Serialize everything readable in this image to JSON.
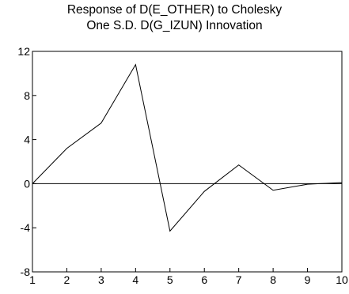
{
  "chart_data": {
    "type": "line",
    "title": "Response of D(E_OTHER) to Cholesky",
    "subtitle": "One S.D. D(G_IZUN) Innovation",
    "xlabel": "",
    "ylabel": "",
    "x": [
      1,
      2,
      3,
      4,
      5,
      6,
      7,
      8,
      9,
      10
    ],
    "series": [
      {
        "values": [
          0,
          3.2,
          5.5,
          10.8,
          -4.3,
          -0.7,
          1.7,
          -0.6,
          -0.05,
          0.1
        ]
      }
    ],
    "xlim": [
      1,
      10
    ],
    "ylim": [
      -8,
      12
    ],
    "xticks": [
      "1",
      "2",
      "3",
      "4",
      "5",
      "6",
      "7",
      "8",
      "9",
      "10"
    ],
    "yticks": [
      {
        "value": 12,
        "label": "12"
      },
      {
        "value": 8,
        "label": "8"
      },
      {
        "value": 4,
        "label": "4"
      },
      {
        "value": 0,
        "label": "0"
      },
      {
        "value": -4,
        "label": "-4"
      },
      {
        "value": -8,
        "label": "-8"
      }
    ],
    "zero_line": true,
    "grid": false,
    "colors": {
      "line": "#000000",
      "axes": "#000000",
      "background": "#ffffff"
    }
  }
}
